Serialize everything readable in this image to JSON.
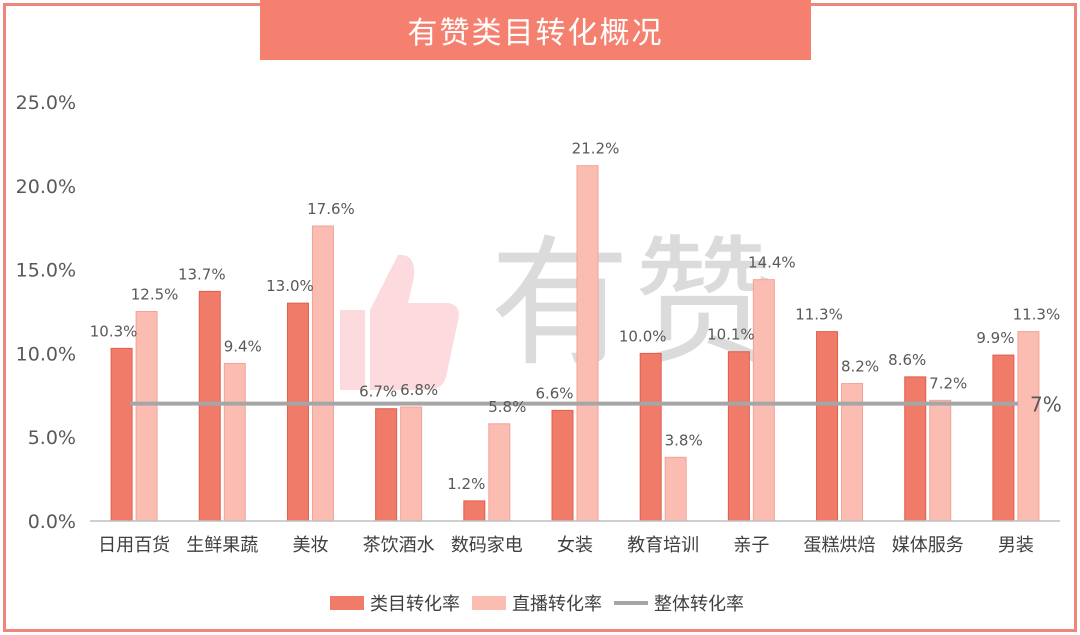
{
  "title": "有赞类目转化概况",
  "watermark_text": "有赞",
  "colors": {
    "category": "#f07b68",
    "live": "#fbbcb2",
    "overall": "#a6a6a6",
    "title_bg": "#f5806f",
    "frame": "#f0867a"
  },
  "chart_data": {
    "type": "bar",
    "title": "有赞类目转化概况",
    "categories": [
      "日用百货",
      "生鲜果蔬",
      "美妆",
      "茶饮酒水",
      "数码家电",
      "女装",
      "教育培训",
      "亲子",
      "蛋糕烘焙",
      "媒体服务",
      "男装"
    ],
    "series": [
      {
        "name": "类目转化率",
        "values": [
          10.3,
          13.7,
          13.0,
          6.7,
          1.2,
          6.6,
          10.0,
          10.1,
          11.3,
          8.6,
          9.9
        ],
        "labels": [
          "10.3%",
          "13.7%",
          "13.0%",
          "6.7%",
          "1.2%",
          "6.6%",
          "10.0%",
          "10.1%",
          "11.3%",
          "8.6%",
          "9.9%"
        ]
      },
      {
        "name": "直播转化率",
        "values": [
          12.5,
          9.4,
          17.6,
          6.8,
          5.8,
          21.2,
          3.8,
          14.4,
          8.2,
          7.2,
          11.3
        ],
        "labels": [
          "12.5%",
          "9.4%",
          "17.6%",
          "6.8%",
          "5.8%",
          "21.2%",
          "3.8%",
          "14.4%",
          "8.2%",
          "7.2%",
          "11.3%"
        ]
      }
    ],
    "reference_line": {
      "name": "整体转化率",
      "value": 7,
      "label": "7%"
    },
    "ylim": [
      0,
      25
    ],
    "yticks": [
      0,
      5,
      10,
      15,
      20,
      25
    ],
    "ytick_labels": [
      "0.0%",
      "5.0%",
      "10.0%",
      "15.0%",
      "20.0%",
      "25.0%"
    ],
    "legend": [
      "类目转化率",
      "直播转化率",
      "整体转化率"
    ],
    "legend_position": "bottom",
    "grid": false
  }
}
